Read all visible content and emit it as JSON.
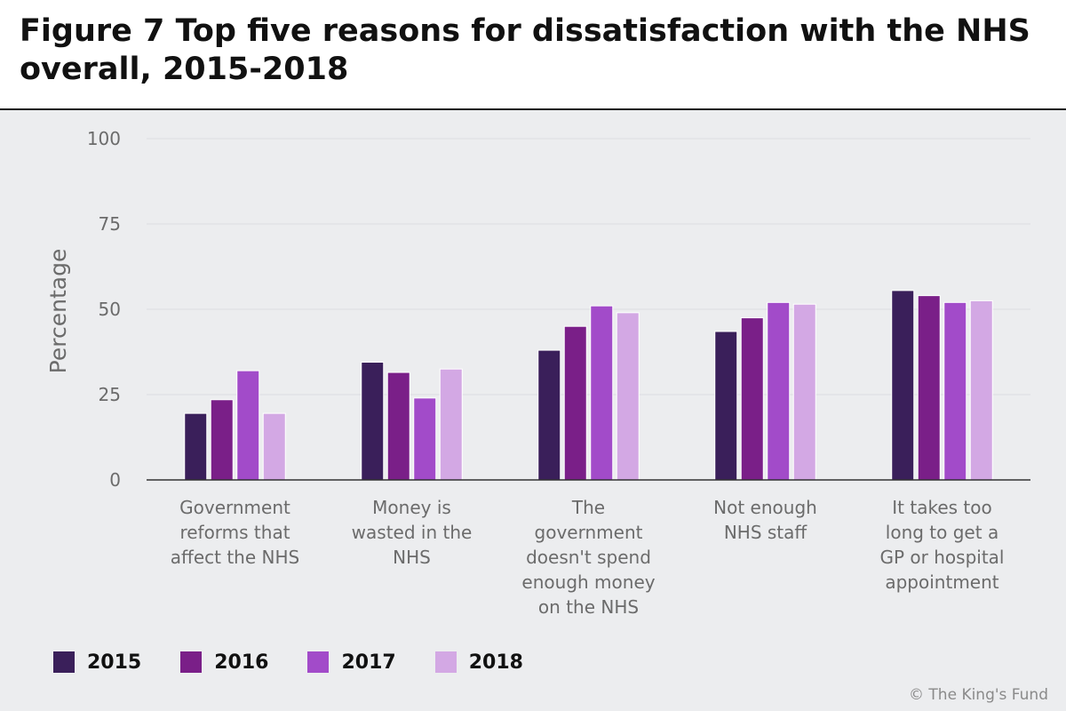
{
  "chart_data": {
    "type": "bar",
    "title": "Figure 7 Top five reasons for dissatisfaction with the NHS overall, 2015-2018",
    "xlabel": "",
    "ylabel": "Percentage",
    "ylim": [
      0,
      100
    ],
    "yticks": [
      0,
      25,
      50,
      75,
      100
    ],
    "grid": true,
    "legend_position": "bottom-left",
    "categories": [
      [
        "Government",
        "reforms that",
        "affect the NHS"
      ],
      [
        "Money is",
        "wasted in the",
        "NHS"
      ],
      [
        "The",
        "government",
        "doesn't spend",
        "enough money",
        "on the NHS"
      ],
      [
        "Not enough",
        "NHS staff"
      ],
      [
        "It takes too",
        "long to get a",
        "GP or hospital",
        "appointment"
      ]
    ],
    "series": [
      {
        "name": "2015",
        "color": "#3a1f5a",
        "values": [
          19.5,
          34.5,
          38,
          43.5,
          55.5
        ]
      },
      {
        "name": "2016",
        "color": "#7a1f88",
        "values": [
          23.5,
          31.5,
          45,
          47.5,
          54
        ]
      },
      {
        "name": "2017",
        "color": "#a24bc9",
        "values": [
          32,
          24,
          51,
          52,
          52
        ]
      },
      {
        "name": "2018",
        "color": "#d3a8e4",
        "values": [
          19.5,
          32.5,
          49,
          51.5,
          52.5
        ]
      }
    ]
  },
  "credit": "© The King's Fund"
}
